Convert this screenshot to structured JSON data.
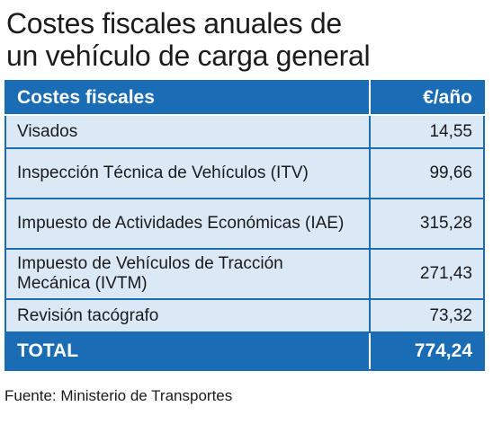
{
  "title": {
    "line1": "Costes fiscales anuales de",
    "line2": "un vehículo de carga general"
  },
  "table": {
    "headers": {
      "concept": "Costes fiscales",
      "amount": "€/año"
    },
    "rows": [
      {
        "label": "Visados",
        "value": "14,55"
      },
      {
        "label": "Inspección Técnica de Vehículos (ITV)",
        "value": "99,66"
      },
      {
        "label": "Impuesto de Actividades Económicas (IAE)",
        "value": "315,28"
      },
      {
        "label": "Impuesto de Vehículos de Tracción Mecánica (IVTM)",
        "value": "271,43"
      },
      {
        "label": "Revisión tacógrafo",
        "value": "73,32"
      }
    ],
    "total": {
      "label": "TOTAL",
      "value": "774,24"
    }
  },
  "source": {
    "prefix": "Fuente:",
    "name": "Ministerio de Transportes"
  },
  "colors": {
    "header_blue": "#1a6db5",
    "row_background": "#dbe9f7"
  }
}
